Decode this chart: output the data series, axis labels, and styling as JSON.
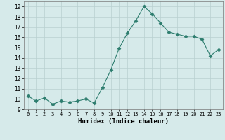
{
  "x": [
    0,
    1,
    2,
    3,
    4,
    5,
    6,
    7,
    8,
    9,
    10,
    11,
    12,
    13,
    14,
    15,
    16,
    17,
    18,
    19,
    20,
    21,
    22,
    23
  ],
  "y": [
    10.3,
    9.8,
    10.1,
    9.5,
    9.8,
    9.7,
    9.8,
    10.0,
    9.6,
    11.1,
    12.8,
    14.9,
    16.4,
    17.6,
    19.0,
    18.3,
    17.4,
    16.5,
    16.3,
    16.1,
    16.1,
    15.8,
    14.2,
    14.8
  ],
  "line_color": "#2d7d6e",
  "marker": "D",
  "marker_size": 2.5,
  "bg_color": "#d6eaea",
  "grid_color": "#b8d0d0",
  "xlabel": "Humidex (Indice chaleur)",
  "xlim": [
    -0.5,
    23.5
  ],
  "ylim": [
    9,
    19.5
  ],
  "yticks": [
    9,
    10,
    11,
    12,
    13,
    14,
    15,
    16,
    17,
    18,
    19
  ],
  "xticks": [
    0,
    1,
    2,
    3,
    4,
    5,
    6,
    7,
    8,
    9,
    10,
    11,
    12,
    13,
    14,
    15,
    16,
    17,
    18,
    19,
    20,
    21,
    22,
    23
  ]
}
